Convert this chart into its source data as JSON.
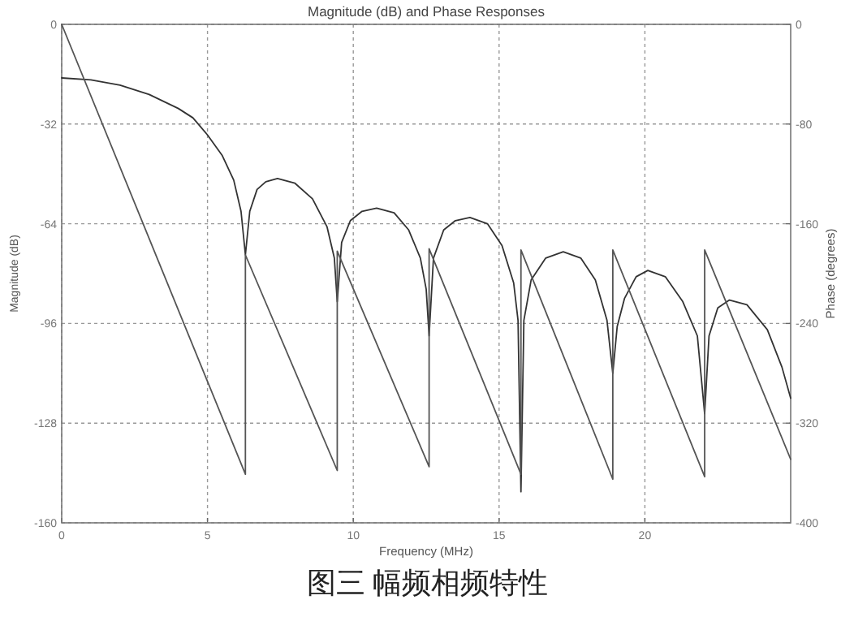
{
  "chart_data": {
    "type": "line",
    "title": "Magnitude (dB) and Phase  Responses",
    "xlabel": "Frequency (MHz)",
    "ylabel": "Magnitude (dB)",
    "y2label": "Phase (degrees)",
    "annotations": [
      "图三  幅频相频特性"
    ],
    "xlim": [
      0,
      25
    ],
    "xticks": [
      0,
      5,
      10,
      15,
      20
    ],
    "ylim": [
      -160,
      0
    ],
    "yticks": [
      0,
      -32,
      -64,
      -96,
      -128,
      -160
    ],
    "y2lim": [
      -400,
      0
    ],
    "y2ticks": [
      0,
      -80,
      -160,
      -240,
      -320,
      -400
    ],
    "grid": true,
    "series": [
      {
        "color": "#333333",
        "x": [
          0,
          1,
          2,
          3,
          4,
          4.5,
          5,
          5.5,
          5.9,
          6.15,
          6.3,
          6.45,
          6.7,
          7.0,
          7.4,
          8.0,
          8.6,
          9.1,
          9.35,
          9.45,
          9.6,
          9.9,
          10.3,
          10.8,
          11.4,
          11.9,
          12.3,
          12.5,
          12.6,
          12.75,
          13.1,
          13.5,
          14.0,
          14.6,
          15.1,
          15.5,
          15.65,
          15.75,
          15.85,
          16.1,
          16.6,
          17.2,
          17.8,
          18.3,
          18.7,
          18.9,
          19.05,
          19.3,
          19.7,
          20.1,
          20.7,
          21.3,
          21.8,
          22.05,
          22.2,
          22.5,
          22.9,
          23.5,
          24.2,
          24.7,
          25
        ],
        "values": [
          -17.2,
          -17.8,
          -19.5,
          -22.5,
          -27,
          -30,
          -35.5,
          -42,
          -50,
          -60,
          -74,
          -60,
          -53,
          -50.5,
          -49.5,
          -51,
          -56,
          -65,
          -75,
          -89,
          -70,
          -63,
          -60,
          -59,
          -60.5,
          -66,
          -75,
          -85,
          -100,
          -75,
          -66,
          -63,
          -62,
          -64,
          -71,
          -83,
          -95,
          -150,
          -95,
          -82,
          -75,
          -73,
          -75,
          -82,
          -95,
          -112,
          -97,
          -88,
          -81,
          -79,
          -81,
          -89,
          -100,
          -125,
          -100,
          -91,
          -88.5,
          -90,
          -98,
          -110,
          -120
        ]
      },
      {
        "color": "#555555",
        "axis": "y2",
        "x": [
          0,
          6.3,
          6.3,
          9.45,
          9.45,
          12.6,
          12.6,
          15.75,
          15.75,
          18.9,
          18.9,
          22.05,
          22.05,
          25
        ],
        "values": [
          0,
          -361,
          -185,
          -358,
          -182,
          -355,
          -180,
          -361,
          -181,
          -365,
          -181,
          -363,
          -181,
          -349
        ]
      }
    ]
  }
}
